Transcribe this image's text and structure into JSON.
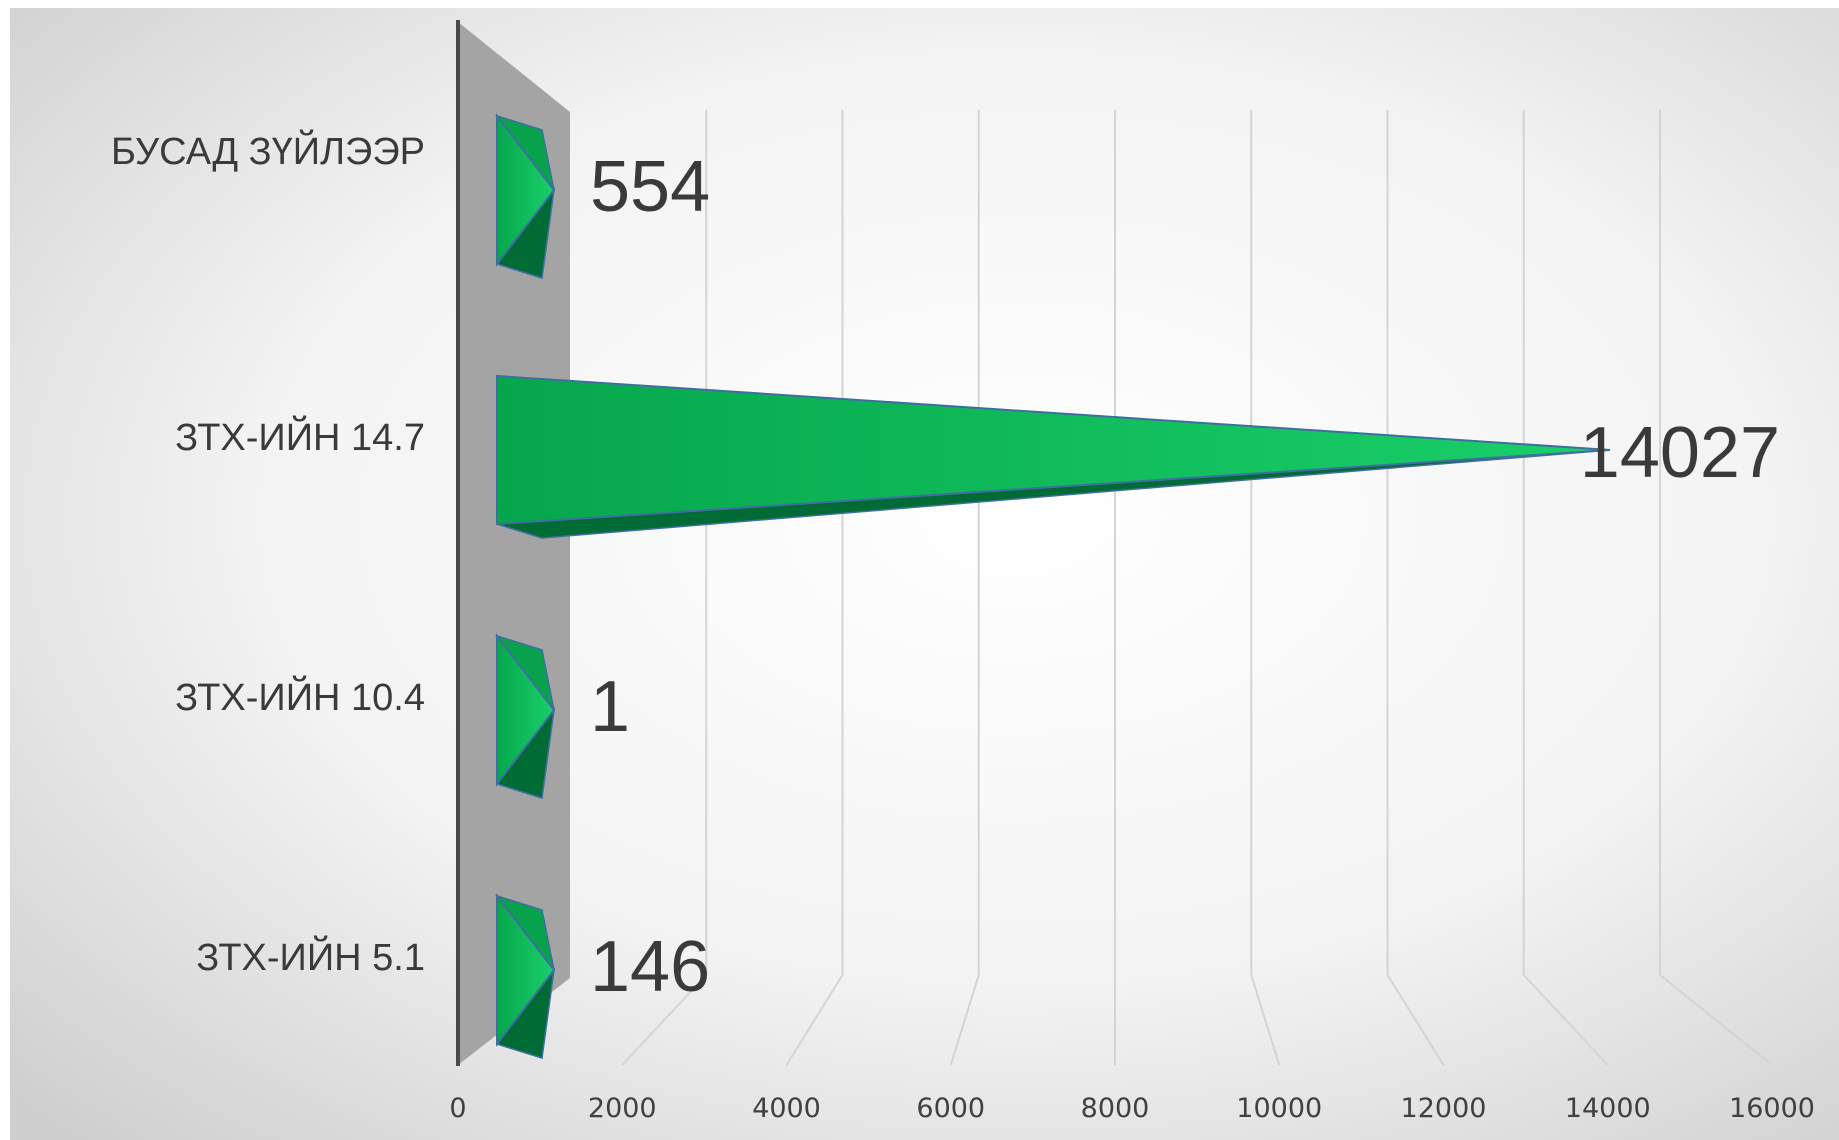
{
  "chart_data": {
    "type": "bar",
    "orientation": "horizontal",
    "style": "3d-cone",
    "categories": [
      "БУСАД ЗҮЙЛЭЭР",
      "ЗТХ-ИЙН 14.7",
      "ЗТХ-ИЙН 10.4",
      "ЗТХ-ИЙН 5.1"
    ],
    "values": [
      554,
      14027,
      1,
      146
    ],
    "data_labels": [
      "554",
      "14027",
      "1",
      "146"
    ],
    "x_ticks": [
      "0",
      "2000",
      "4000",
      "6000",
      "8000",
      "10000",
      "12000",
      "14000",
      "16000"
    ],
    "xlim": [
      0,
      16000
    ],
    "grid": true,
    "legend": "none",
    "colors": {
      "bar_light": "#12c75f",
      "bar_mid": "#08a24c",
      "bar_dark": "#006b34",
      "bar_edge": "#3f6fa0",
      "wall": "#a4a4a4",
      "grid": "#d4d4d4",
      "axis": "#4a4a4a"
    }
  }
}
